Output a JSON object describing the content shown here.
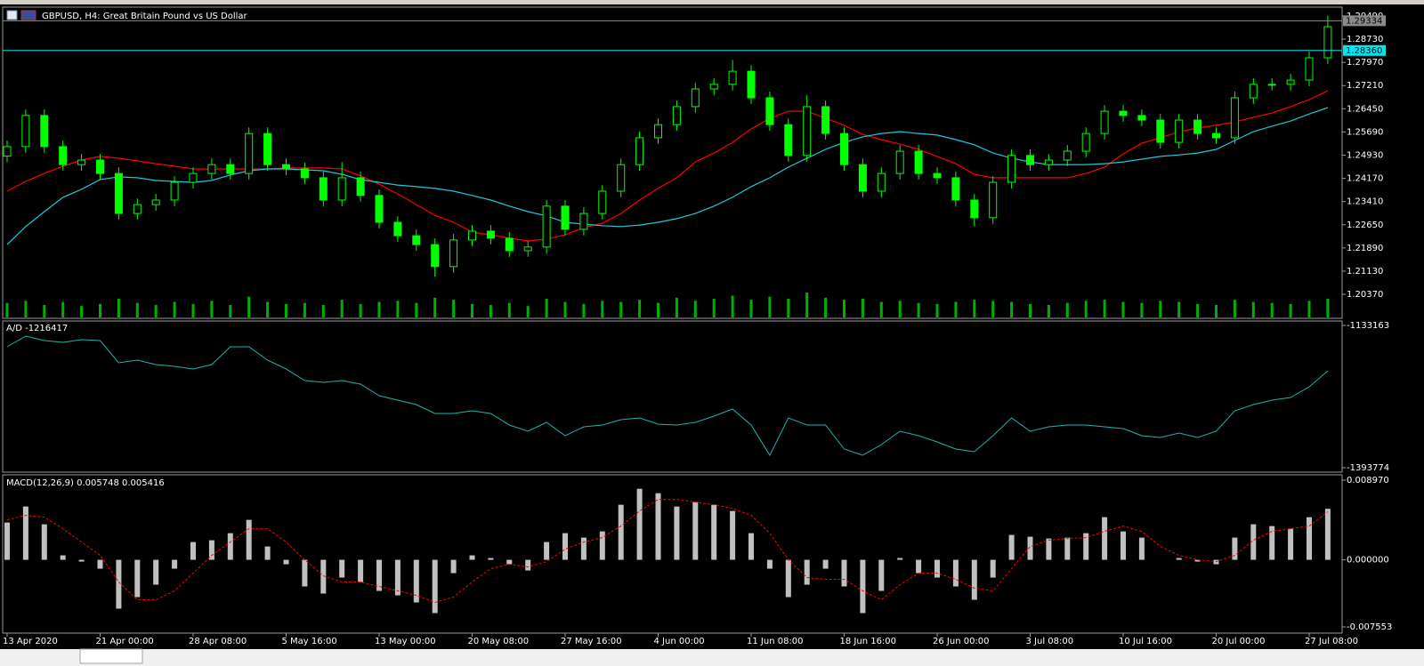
{
  "window_title": "GBPUSD, H4:  Great Britain Pound vs US Dollar",
  "chart_data": [
    {
      "type": "candlestick",
      "categories": [
        "13 Apr 2020",
        null,
        null,
        null,
        null,
        "21 Apr 00:00",
        null,
        null,
        null,
        null,
        "28 Apr 08:00",
        null,
        null,
        null,
        null,
        "5 May 16:00",
        null,
        null,
        null,
        null,
        "13 May 00:00",
        null,
        null,
        null,
        null,
        "20 May 08:00",
        null,
        null,
        null,
        null,
        "27 May 16:00",
        null,
        null,
        null,
        null,
        "4 Jun 00:00",
        null,
        null,
        null,
        null,
        "11 Jun 08:00",
        null,
        null,
        null,
        null,
        "18 Jun 16:00",
        null,
        null,
        null,
        null,
        "26 Jun 00:00",
        null,
        null,
        null,
        null,
        "3 Jul 08:00",
        null,
        null,
        null,
        null,
        "10 Jul 16:00",
        null,
        null,
        null,
        null,
        "20 Jul 00:00",
        null,
        null,
        null,
        null,
        "27 Jul 08:00",
        null
      ],
      "open": [
        1.249,
        1.2521,
        1.2623,
        1.2521,
        1.2462,
        1.2477,
        1.2433,
        1.2302,
        1.2331,
        1.2346,
        1.2404,
        1.2433,
        1.2462,
        1.2433,
        1.2564,
        1.2462,
        1.2448,
        1.2419,
        1.2346,
        1.2419,
        1.2361,
        1.2273,
        1.2229,
        1.22,
        1.2128,
        1.2215,
        1.2244,
        1.2221,
        1.218,
        1.2192,
        1.2326,
        1.225,
        1.2302,
        1.2375,
        1.2462,
        1.255,
        1.2593,
        1.2652,
        1.271,
        1.2725,
        1.2768,
        1.2681,
        1.2593,
        1.2492,
        1.2652,
        1.2564,
        1.2462,
        1.2375,
        1.2433,
        1.2506,
        1.2433,
        1.2419,
        1.2346,
        1.2288,
        1.2404,
        1.2492,
        1.2462,
        1.2477,
        1.2506,
        1.2564,
        1.2637,
        1.2623,
        1.2608,
        1.2535,
        1.2608,
        1.2564,
        1.255,
        1.2681,
        1.2725,
        1.2725,
        1.2739,
        1.2812
      ],
      "high": [
        1.2541,
        1.2643,
        1.2643,
        1.2541,
        1.2497,
        1.2497,
        1.2453,
        1.2351,
        1.2366,
        1.2424,
        1.2453,
        1.2482,
        1.2482,
        1.2584,
        1.2584,
        1.2482,
        1.2468,
        1.2439,
        1.247,
        1.2439,
        1.2381,
        1.2293,
        1.2249,
        1.222,
        1.2235,
        1.2264,
        1.2264,
        1.2241,
        1.2212,
        1.2346,
        1.2346,
        1.2322,
        1.2395,
        1.2482,
        1.257,
        1.2613,
        1.2672,
        1.273,
        1.2745,
        1.2805,
        1.2788,
        1.2701,
        1.2613,
        1.269,
        1.2672,
        1.2584,
        1.2482,
        1.2453,
        1.2526,
        1.2526,
        1.2453,
        1.2439,
        1.2366,
        1.2424,
        1.2512,
        1.2512,
        1.2497,
        1.2526,
        1.2584,
        1.2657,
        1.2657,
        1.2643,
        1.2628,
        1.2628,
        1.2628,
        1.2584,
        1.2701,
        1.2745,
        1.2745,
        1.2759,
        1.2832,
        1.295
      ],
      "low": [
        1.247,
        1.2501,
        1.2501,
        1.2442,
        1.2442,
        1.2413,
        1.2282,
        1.2282,
        1.2311,
        1.2326,
        1.2384,
        1.2413,
        1.2413,
        1.2413,
        1.2442,
        1.2428,
        1.2399,
        1.2326,
        1.2326,
        1.2341,
        1.2253,
        1.2209,
        1.218,
        1.2095,
        1.2108,
        1.2195,
        1.2201,
        1.216,
        1.216,
        1.2172,
        1.223,
        1.223,
        1.2282,
        1.2355,
        1.2442,
        1.253,
        1.2573,
        1.2632,
        1.269,
        1.2705,
        1.2661,
        1.2573,
        1.2472,
        1.2472,
        1.2544,
        1.2442,
        1.2355,
        1.2355,
        1.2413,
        1.2413,
        1.2399,
        1.2326,
        1.226,
        1.2268,
        1.2384,
        1.2442,
        1.2442,
        1.2457,
        1.2486,
        1.2544,
        1.2603,
        1.2588,
        1.2515,
        1.2515,
        1.2544,
        1.253,
        1.253,
        1.2661,
        1.2705,
        1.2705,
        1.2719,
        1.2792
      ],
      "close": [
        1.2521,
        1.2623,
        1.2521,
        1.2462,
        1.2477,
        1.2433,
        1.2302,
        1.2331,
        1.2346,
        1.2404,
        1.2433,
        1.2462,
        1.2433,
        1.2564,
        1.2462,
        1.2448,
        1.2419,
        1.2346,
        1.2419,
        1.2361,
        1.2273,
        1.2229,
        1.22,
        1.2128,
        1.2215,
        1.2244,
        1.2221,
        1.218,
        1.2192,
        1.2326,
        1.225,
        1.2302,
        1.2375,
        1.2462,
        1.255,
        1.2593,
        1.2652,
        1.271,
        1.2725,
        1.2768,
        1.2681,
        1.2593,
        1.2492,
        1.2652,
        1.2564,
        1.2462,
        1.2375,
        1.2433,
        1.2506,
        1.2433,
        1.2419,
        1.2346,
        1.2288,
        1.2404,
        1.2492,
        1.2462,
        1.2477,
        1.2506,
        1.2564,
        1.2637,
        1.2623,
        1.2608,
        1.2535,
        1.2608,
        1.2564,
        1.255,
        1.2681,
        1.2725,
        1.2725,
        1.2739,
        1.2812,
        1.2914
      ],
      "up_color": "#000000",
      "down_color": "#00ff00",
      "wick_color": "#00ff00",
      "volumes": [
        14000,
        16000,
        12000,
        15000,
        11000,
        13000,
        18000,
        14000,
        12000,
        15000,
        13000,
        16000,
        12000,
        20000,
        15000,
        13000,
        14000,
        12000,
        17000,
        13000,
        15000,
        16000,
        14000,
        19000,
        17000,
        13000,
        12000,
        14000,
        11000,
        18000,
        15000,
        13000,
        16000,
        15000,
        17000,
        14000,
        19000,
        16000,
        18000,
        21000,
        17000,
        20000,
        18000,
        24000,
        19000,
        17000,
        18000,
        15000,
        16000,
        14000,
        13000,
        15000,
        17000,
        16000,
        15000,
        13000,
        12000,
        14000,
        16000,
        17000,
        15000,
        14000,
        16000,
        15000,
        13000,
        12000,
        17000,
        15000,
        14000,
        13000,
        16000,
        18000
      ],
      "volume_color": "#00b000",
      "series": [
        {
          "color": "#ff0000",
          "values": [
            1.2375,
            1.2407,
            1.2433,
            1.2457,
            1.2477,
            1.2489,
            1.2483,
            1.2474,
            1.2465,
            1.2457,
            1.2448,
            1.2448,
            1.2448,
            1.2448,
            1.2448,
            1.2451,
            1.2451,
            1.2451,
            1.2448,
            1.2425,
            1.2398,
            1.2366,
            1.2331,
            1.2296,
            1.2273,
            1.2241,
            1.2232,
            1.2221,
            1.2212,
            1.2218,
            1.2232,
            1.2256,
            1.227,
            1.2302,
            1.2346,
            1.2384,
            1.2419,
            1.2471,
            1.25,
            1.2535,
            1.2579,
            1.2614,
            1.2637,
            1.2637,
            1.2614,
            1.2591,
            1.2561,
            1.2544,
            1.2529,
            1.2512,
            1.2489,
            1.2465,
            1.243,
            1.2419,
            1.2419,
            1.2419,
            1.2419,
            1.2419,
            1.2433,
            1.2454,
            1.2497,
            1.2532,
            1.255,
            1.257,
            1.2582,
            1.2591,
            1.2602,
            1.2617,
            1.2631,
            1.2652,
            1.2675,
            1.2704
          ]
        },
        {
          "color": "#1ec8d8",
          "values": [
            1.22,
            1.2259,
            1.2308,
            1.2355,
            1.2381,
            1.2413,
            1.2422,
            1.2419,
            1.241,
            1.2407,
            1.2404,
            1.241,
            1.2428,
            1.2442,
            1.2448,
            1.2448,
            1.2445,
            1.2442,
            1.243,
            1.2413,
            1.2404,
            1.2395,
            1.239,
            1.2384,
            1.2375,
            1.2361,
            1.2346,
            1.2326,
            1.2308,
            1.2294,
            1.2273,
            1.2267,
            1.2262,
            1.2259,
            1.2264,
            1.2273,
            1.2285,
            1.2302,
            1.2326,
            1.2355,
            1.239,
            1.2419,
            1.2454,
            1.2483,
            1.2512,
            1.2535,
            1.2553,
            1.2564,
            1.257,
            1.2564,
            1.2559,
            1.2544,
            1.2527,
            1.25,
            1.2483,
            1.2471,
            1.2462,
            1.2462,
            1.2462,
            1.2465,
            1.2471,
            1.248,
            1.2489,
            1.2494,
            1.25,
            1.2512,
            1.2541,
            1.257,
            1.2588,
            1.2605,
            1.2628,
            1.2649
          ]
        }
      ],
      "price_lines": [
        {
          "value": 1.29334,
          "line_color": "#5f9ea0",
          "box_color": "#8a8a8a"
        },
        {
          "value": 1.2836,
          "label": "1.28360",
          "line_color": "#00e5ee",
          "box_color": "#00e5ee"
        }
      ],
      "ylim": [
        1.19584,
        1.29781
      ],
      "yticks": [
        {
          "value": 1.2949,
          "label": "1.29490"
        },
        {
          "value": 1.2873,
          "label": "1.28730"
        },
        {
          "value": 1.2797,
          "label": "1.27970"
        },
        {
          "value": 1.2721,
          "label": "1.27210"
        },
        {
          "value": 1.2645,
          "label": "1.26450"
        },
        {
          "value": 1.2569,
          "label": "1.25690"
        },
        {
          "value": 1.2493,
          "label": "1.24930"
        },
        {
          "value": 1.2417,
          "label": "1.24170"
        },
        {
          "value": 1.2341,
          "label": "1.23410"
        },
        {
          "value": 1.2265,
          "label": "1.22650"
        },
        {
          "value": 1.2189,
          "label": "1.21890"
        },
        {
          "value": 1.2113,
          "label": "1.21130"
        },
        {
          "value": 1.2037,
          "label": "1.20370"
        }
      ]
    },
    {
      "type": "line",
      "title": "A/D -1216417",
      "color": "#20b2aa",
      "values": [
        -1172254,
        -1152709,
        -1160853,
        -1164110,
        -1159224,
        -1160853,
        -1201573,
        -1196686,
        -1204830,
        -1208088,
        -1212974,
        -1204830,
        -1172254,
        -1172254,
        -1196686,
        -1212974,
        -1234149,
        -1237406,
        -1234149,
        -1240664,
        -1261838,
        -1269982,
        -1278126,
        -1294414,
        -1294414,
        -1289528,
        -1294414,
        -1315589,
        -1326990,
        -1310702,
        -1335134,
        -1318846,
        -1315589,
        -1305816,
        -1302558,
        -1313960,
        -1315589,
        -1310702,
        -1299301,
        -1286270,
        -1315589,
        -1370968,
        -1302558,
        -1315589,
        -1315589,
        -1359566,
        -1370968,
        -1351422,
        -1326990,
        -1335134,
        -1346536,
        -1359566,
        -1364453,
        -1335134,
        -1302558,
        -1326990,
        -1318846,
        -1315589,
        -1315589,
        -1318846,
        -1322104,
        -1335134,
        -1338392,
        -1330248,
        -1338392,
        -1326990,
        -1289528,
        -1278126,
        -1269982,
        -1265096,
        -1245550,
        -1216417
      ],
      "ylim": [
        -1393774,
        -1133163
      ],
      "yticks": [
        -1393774,
        -1133163
      ]
    },
    {
      "type": "macd",
      "title": "MACD(12,26,9) 0.005748 0.005416",
      "series": [
        {
          "color": "#c0c0c0",
          "values": [
            0.0042,
            0.006,
            0.004,
            0.0005,
            -0.0002,
            -0.001,
            -0.0055,
            -0.0042,
            -0.0028,
            -0.001,
            0.002,
            0.0022,
            0.003,
            0.0045,
            0.0015,
            -0.0005,
            -0.003,
            -0.0038,
            -0.002,
            -0.0025,
            -0.0035,
            -0.004,
            -0.0048,
            -0.006,
            -0.0015,
            0.0005,
            0.0002,
            -0.0005,
            -0.0012,
            0.002,
            0.003,
            0.0025,
            0.0032,
            0.0062,
            0.008,
            0.0075,
            0.006,
            0.0065,
            0.0062,
            0.0055,
            0.003,
            -0.001,
            -0.0042,
            -0.0028,
            -0.001,
            -0.003,
            -0.006,
            -0.0035,
            0.0002,
            -0.0015,
            -0.002,
            -0.003,
            -0.0045,
            -0.002,
            0.0028,
            0.0026,
            0.0024,
            0.0025,
            0.003,
            0.0048,
            0.0032,
            0.0025,
            0,
            0.0002,
            -0.0002,
            -0.0005,
            0.0025,
            0.004,
            0.0038,
            0.0035,
            0.0048,
            0.005748
          ]
        },
        {
          "color": "#ff0000",
          "values": [
            0.0045,
            0.005,
            0.0048,
            0.0035,
            0.002,
            0.0005,
            -0.0025,
            -0.0045,
            -0.0045,
            -0.0035,
            -0.0015,
            0.0005,
            0.002,
            0.0035,
            0.0035,
            0.002,
            0,
            -0.0018,
            -0.0025,
            -0.0025,
            -0.003,
            -0.0035,
            -0.004,
            -0.0048,
            -0.0042,
            -0.0025,
            -0.001,
            -0.0005,
            -0.0008,
            -0.0002,
            0.0012,
            0.002,
            0.0025,
            0.0038,
            0.0055,
            0.0068,
            0.0068,
            0.0065,
            0.0062,
            0.0058,
            0.005,
            0.003,
            0,
            -0.002,
            -0.0022,
            -0.0022,
            -0.0035,
            -0.0045,
            -0.0028,
            -0.0015,
            -0.0015,
            -0.0022,
            -0.0032,
            -0.0035,
            -0.001,
            0.0015,
            0.0022,
            0.0024,
            0.0025,
            0.0032,
            0.0038,
            0.0032,
            0.0015,
            0.0005,
            0,
            -0.0002,
            0.0005,
            0.0022,
            0.0032,
            0.0035,
            0.0038,
            0.005416
          ]
        }
      ],
      "ylim": [
        -0.007553,
        0.00897
      ],
      "yticks": [
        -0.007553,
        {
          "value": 0,
          "label": "0.000000"
        },
        {
          "value": 0.00897,
          "label": "0.008970"
        }
      ]
    }
  ]
}
